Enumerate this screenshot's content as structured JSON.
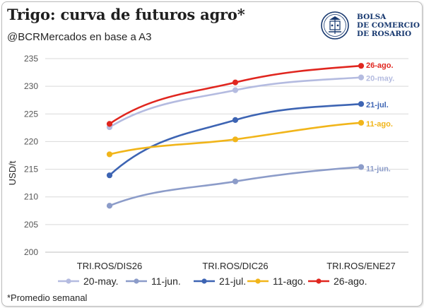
{
  "header": {
    "title": "Trigo: curva de futuros agro*",
    "subtitle": "@BCRMercados en base a A3"
  },
  "logo": {
    "line1": "BOLSA",
    "line2": "DE COMERCIO",
    "line3": "DE ROSARIO",
    "icon": "bcr-seal-icon"
  },
  "footnote": "*Promedio semanal",
  "chart_data": {
    "type": "line",
    "title": "Trigo: curva de futuros agro*",
    "ylabel": "USD/t",
    "xlabel": "",
    "ylim": [
      200,
      235
    ],
    "yticks": [
      200,
      205,
      210,
      215,
      220,
      225,
      230,
      235
    ],
    "grid": true,
    "legend_position": "bottom",
    "categories": [
      "TRI.ROS/DIS26",
      "TRI.ROS/DIC26",
      "TRI.ROS/ENE27"
    ],
    "series": [
      {
        "name": "20-may.",
        "color": "#b4bbe0",
        "values": [
          222.6,
          229.3,
          231.6
        ],
        "end_label": "20-may."
      },
      {
        "name": "11-jun.",
        "color": "#8c9cc9",
        "values": [
          208.4,
          212.8,
          215.4
        ],
        "end_label": "11-jun."
      },
      {
        "name": "21-jul.",
        "color": "#3d64b3",
        "values": [
          213.9,
          223.9,
          226.8
        ],
        "end_label": "21-jul."
      },
      {
        "name": "11-ago.",
        "color": "#f1b51a",
        "values": [
          217.7,
          220.4,
          223.4
        ],
        "end_label": "11-ago."
      },
      {
        "name": "26-ago.",
        "color": "#e0261f",
        "values": [
          223.2,
          230.7,
          233.7
        ],
        "end_label": "26-ago."
      }
    ]
  }
}
